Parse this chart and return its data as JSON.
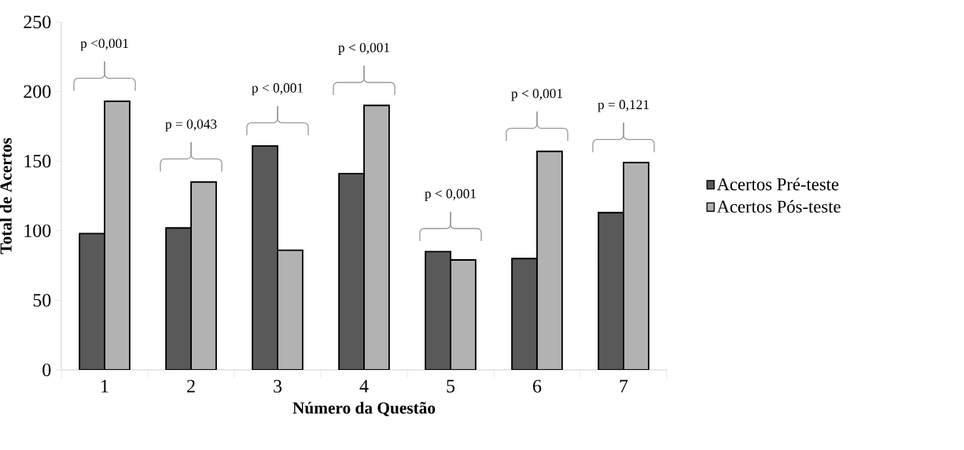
{
  "chart_data": {
    "type": "bar",
    "xlabel": "Número da Questão",
    "ylabel": "Total de Acertos",
    "categories": [
      "1",
      "2",
      "3",
      "4",
      "5",
      "6",
      "7"
    ],
    "series": [
      {
        "name": "Acertos Pré-teste",
        "color": "#595959",
        "values": [
          98,
          102,
          161,
          141,
          85,
          80,
          113
        ]
      },
      {
        "name": "Acertos Pós-teste",
        "color": "#b2b2b2",
        "values": [
          193,
          135,
          86,
          190,
          79,
          157,
          149
        ]
      }
    ],
    "ylim": [
      0,
      250
    ],
    "yticks": [
      0,
      50,
      100,
      150,
      200,
      250
    ],
    "grid": false,
    "legend": "right",
    "annotations": [
      "p <0,001",
      "p = 0,043",
      "p < 0,001",
      "p < 0,001",
      "p < 0,001",
      "p < 0,001",
      "p = 0,121"
    ]
  }
}
